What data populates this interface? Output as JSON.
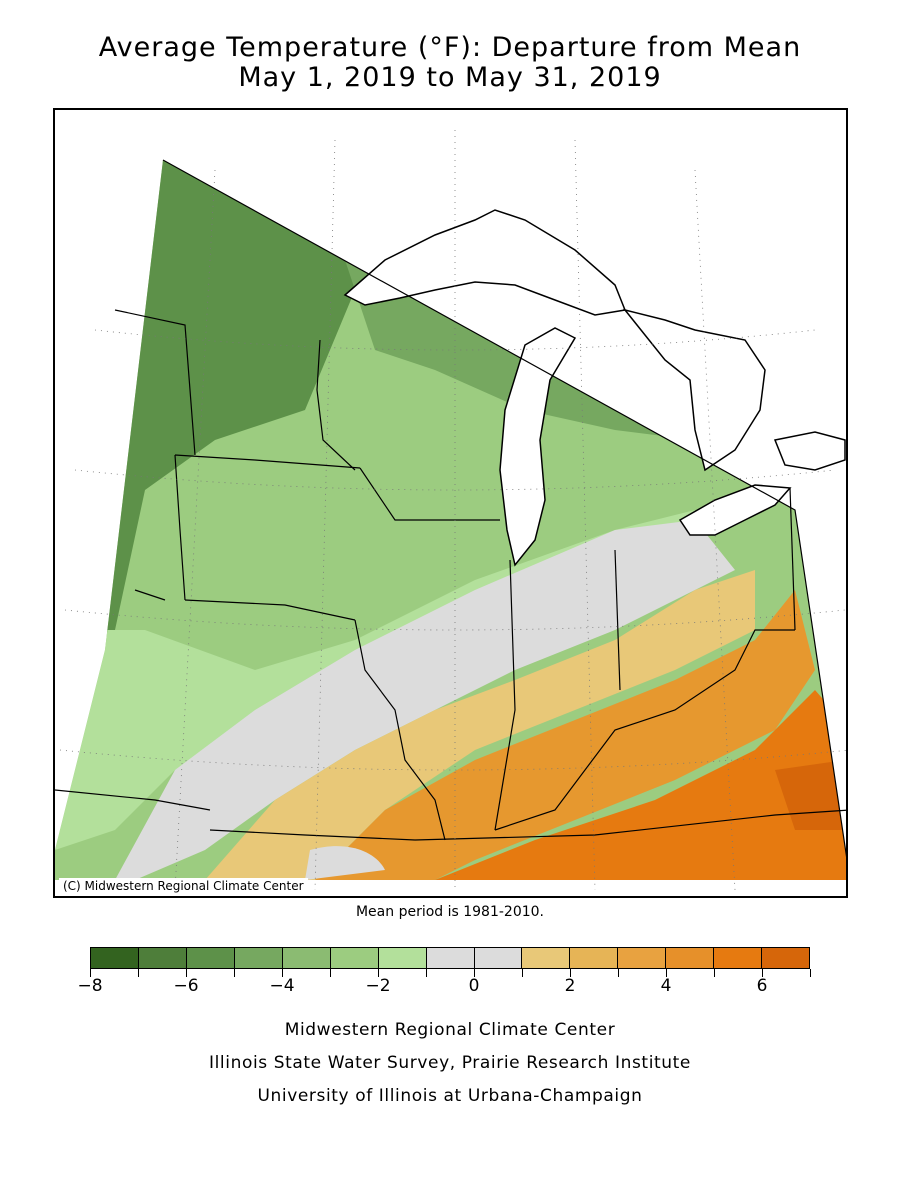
{
  "title": {
    "line1": "Average Temperature (°F): Departure from Mean",
    "line2": "May 1, 2019 to May 31, 2019"
  },
  "map": {
    "copyright": "(C) Midwestern Regional Climate Center",
    "region": "Upper Midwest / Great Lakes",
    "regions": [
      {
        "name": "northwest",
        "departure_class": "-6 to -5",
        "color": "#5d9149"
      },
      {
        "name": "north-central",
        "departure_class": "-5 to -4",
        "color": "#76a860"
      },
      {
        "name": "wisconsin-iowa",
        "departure_class": "-3 to -2",
        "color": "#9ccc80"
      },
      {
        "name": "central-band",
        "departure_class": "-2 to -1",
        "color": "#b3e09b"
      },
      {
        "name": "illinois-indiana-north",
        "departure_class": "-1 to 1",
        "color": "#dcdcdc"
      },
      {
        "name": "missouri-southern-illinois",
        "departure_class": "1 to 2",
        "color": "#e8c878"
      },
      {
        "name": "southern-indiana-kentucky",
        "departure_class": "3 to 4",
        "color": "#e6982f"
      },
      {
        "name": "ohio-kentucky-east",
        "departure_class": "5 to 6",
        "color": "#e67a10"
      }
    ]
  },
  "mean_note": "Mean period is 1981-2010.",
  "legend": {
    "colors": [
      "#33631f",
      "#4e7e3a",
      "#5d9149",
      "#76a860",
      "#8bbb72",
      "#9ccc80",
      "#b3e09b",
      "#dcdcdc",
      "#dcdcdc",
      "#e8c878",
      "#e6b456",
      "#e8a240",
      "#e6902a",
      "#e67a10",
      "#d6660a"
    ],
    "tick_labels": [
      "−8",
      "−6",
      "−4",
      "−2",
      "0",
      "2",
      "4",
      "6"
    ],
    "tick_values": [
      -8,
      -6,
      -4,
      -2,
      0,
      2,
      4,
      6
    ],
    "min": -8,
    "max": 7
  },
  "credits": {
    "line1": "Midwestern Regional Climate Center",
    "line2": "Illinois State Water Survey, Prairie Research Institute",
    "line3": "University of Illinois at Urbana-Champaign"
  }
}
